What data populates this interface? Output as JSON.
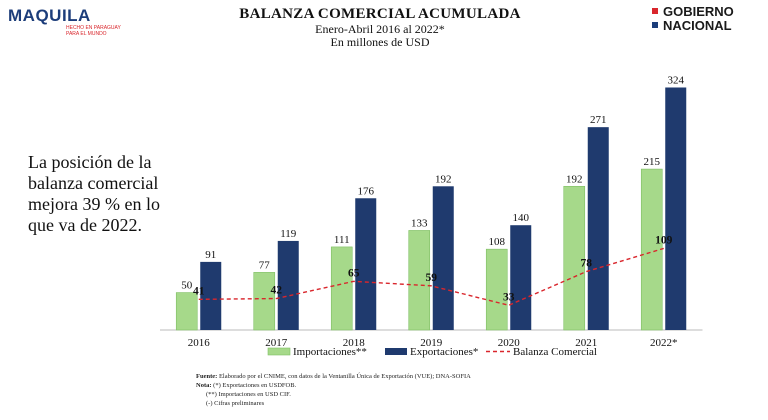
{
  "header": {
    "logo_left": {
      "word": "MAQUILA",
      "tagline": "HECHO EN PARAGUAY PARA EL MUNDO"
    },
    "logo_right": {
      "line1": "GOBIERNO",
      "line2": "NACIONAL"
    }
  },
  "side_text": "La posición de la balanza comercial mejora 39 % en lo que va de 2022.",
  "notes": {
    "fuente_label": "Fuente:",
    "fuente_text": "Elaborado por el CNIME, con datos de la Ventanilla Única de Exportación (VUE); DNA-SOFIA",
    "nota_label": "Nota:",
    "nota_1": "(*) Exportaciones en USDFOB.",
    "nota_2": "(**) Importaciones en USD CIF.",
    "nota_3": "(-) Cifras preliminares"
  },
  "chart_data": {
    "type": "bar",
    "title": "BALANZA COMERCIAL ACUMULADA",
    "subtitle": "Enero-Abril 2016 al 2022*",
    "unit": "En millones de USD",
    "categories": [
      "2016",
      "2017",
      "2018",
      "2019",
      "2020",
      "2021",
      "2022*"
    ],
    "series": [
      {
        "name": "Importaciones**",
        "kind": "bar",
        "color": "#a6d98a",
        "values": [
          50,
          77,
          111,
          133,
          108,
          192,
          215
        ]
      },
      {
        "name": "Exportaciones*",
        "kind": "bar",
        "color": "#1f3a6e",
        "values": [
          91,
          119,
          176,
          192,
          140,
          271,
          324
        ]
      },
      {
        "name": "Balanza Comercial",
        "kind": "line",
        "color": "#d9262c",
        "values": [
          41,
          42,
          65,
          59,
          33,
          78,
          109
        ]
      }
    ],
    "ylim": [
      0,
      330
    ],
    "grid": false,
    "legend_position": "bottom"
  }
}
